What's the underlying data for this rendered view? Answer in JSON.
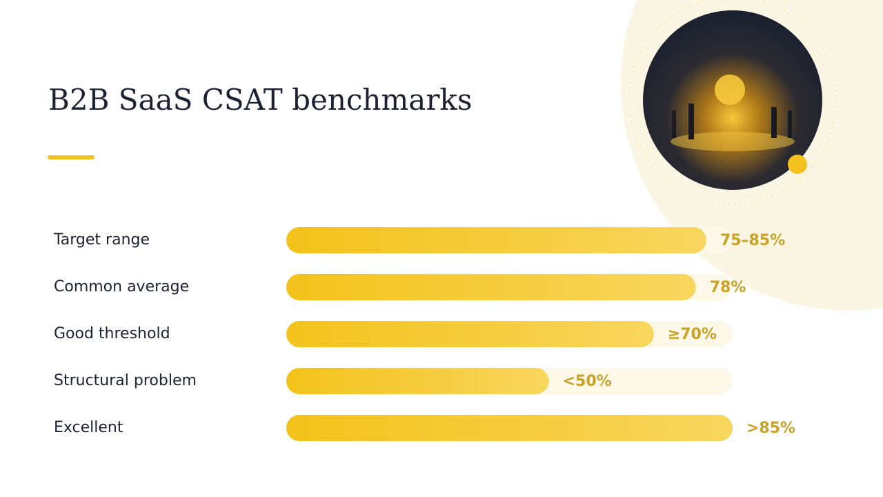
{
  "chart_data": {
    "type": "bar",
    "orientation": "horizontal",
    "title": "B2B SaaS CSAT benchmarks",
    "categories": [
      "Target range",
      "Common average",
      "Good threshold",
      "Structural problem",
      "Excellent"
    ],
    "values": [
      80,
      78,
      70,
      50,
      85
    ],
    "value_labels": [
      "75–85%",
      "78%",
      "≥70%",
      "<50%",
      ">85%"
    ],
    "xlim": [
      0,
      85
    ],
    "color": "#f4c21f"
  }
}
